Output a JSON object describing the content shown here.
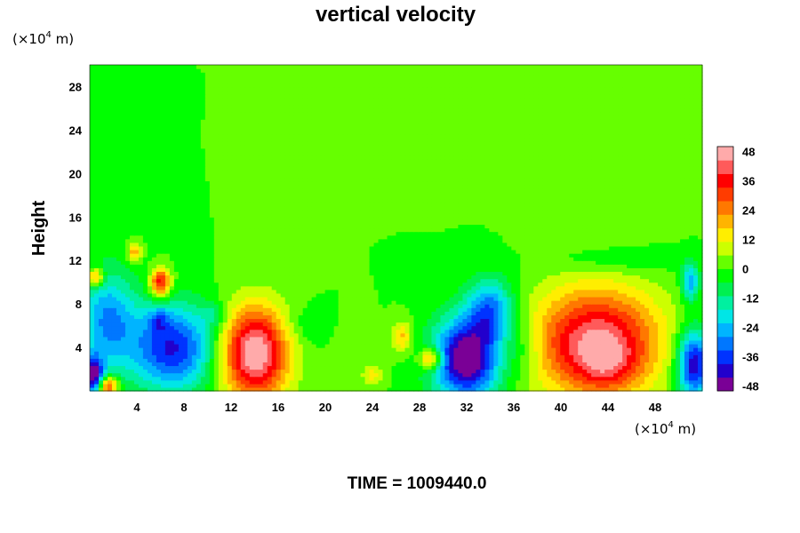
{
  "chart_data": {
    "type": "heatmap",
    "title": "vertical velocity",
    "ylabel": "Height",
    "xlabel": "",
    "y_unit_prefix": "(×10",
    "y_unit_exp": "4",
    "y_unit_suffix": " m)",
    "x_unit_prefix": "(×10",
    "x_unit_exp": "4",
    "x_unit_suffix": " m)",
    "footer": "TIME = 1009440.0",
    "xlim": [
      0,
      52
    ],
    "ylim": [
      0,
      30
    ],
    "x_ticks": [
      4,
      8,
      12,
      16,
      20,
      24,
      28,
      32,
      36,
      40,
      44,
      48
    ],
    "y_ticks": [
      4,
      8,
      12,
      16,
      20,
      24,
      28
    ],
    "colorbar": {
      "min": -50,
      "max": 50,
      "ticks": [
        48,
        36,
        24,
        12,
        0,
        -12,
        -24,
        -36,
        -48
      ],
      "colors": [
        "#7a0096",
        "#2200cc",
        "#0033ff",
        "#0077ff",
        "#00b4ff",
        "#00e6e6",
        "#00f0a0",
        "#00f050",
        "#00ff00",
        "#66ff00",
        "#ccff00",
        "#ffee00",
        "#ffb400",
        "#ff7800",
        "#ff3c00",
        "#ff0000",
        "#ff5a5a",
        "#ffaaaa"
      ]
    },
    "background_value": 0,
    "features": [
      {
        "x": 14,
        "y": 3.5,
        "sx": 2.0,
        "sy": 3.0,
        "amp": 52
      },
      {
        "x": 43,
        "y": 4.5,
        "sx": 3.8,
        "sy": 3.5,
        "amp": 46
      },
      {
        "x": 44,
        "y": 2.5,
        "sx": 1.6,
        "sy": 1.5,
        "amp": 12
      },
      {
        "x": 32,
        "y": 3.0,
        "sx": 2.0,
        "sy": 2.6,
        "amp": -54
      },
      {
        "x": 34,
        "y": 7.5,
        "sx": 1.4,
        "sy": 2.0,
        "amp": -30
      },
      {
        "x": 7,
        "y": 4.0,
        "sx": 2.5,
        "sy": 2.8,
        "amp": -40
      },
      {
        "x": 5.8,
        "y": 6.5,
        "sx": 0.6,
        "sy": 0.8,
        "amp": -14
      },
      {
        "x": 1.5,
        "y": 6.5,
        "sx": 1.7,
        "sy": 3.2,
        "amp": -28
      },
      {
        "x": 0.3,
        "y": 1.5,
        "sx": 0.6,
        "sy": 1.2,
        "amp": -48
      },
      {
        "x": 51.3,
        "y": 2.5,
        "sx": 1.0,
        "sy": 2.2,
        "amp": -46
      },
      {
        "x": 51.0,
        "y": 10.0,
        "sx": 0.5,
        "sy": 1.2,
        "amp": -28
      },
      {
        "x": 6.0,
        "y": 10.0,
        "sx": 0.6,
        "sy": 0.9,
        "amp": 40
      },
      {
        "x": 1.5,
        "y": 0.5,
        "sx": 0.6,
        "sy": 0.6,
        "amp": 38
      },
      {
        "x": 29.0,
        "y": 3.0,
        "sx": 0.7,
        "sy": 0.7,
        "amp": 32
      },
      {
        "x": 0.5,
        "y": 10.5,
        "sx": 0.5,
        "sy": 0.6,
        "amp": 28
      },
      {
        "x": 3.8,
        "y": 12.8,
        "sx": 0.4,
        "sy": 0.6,
        "amp": 22
      },
      {
        "x": 26.5,
        "y": 5.0,
        "sx": 0.6,
        "sy": 1.0,
        "amp": 18
      },
      {
        "x": 24.0,
        "y": 1.5,
        "sx": 0.6,
        "sy": 0.6,
        "amp": 14
      },
      {
        "x": 10.5,
        "y": 7.0,
        "sx": 0.8,
        "sy": 0.8,
        "amp": -10
      },
      {
        "x": 18.5,
        "y": 6.0,
        "sx": 1.5,
        "sy": 1.2,
        "amp": -6
      },
      {
        "x": 22.0,
        "y": 4.5,
        "sx": 1.0,
        "sy": 1.5,
        "amp": 5
      },
      {
        "x": 37.0,
        "y": 4.0,
        "sx": 1.2,
        "sy": 2.0,
        "amp": -8
      },
      {
        "x": 45.0,
        "y": 12.0,
        "sx": 4.0,
        "sy": 0.8,
        "amp": -6
      }
    ]
  }
}
